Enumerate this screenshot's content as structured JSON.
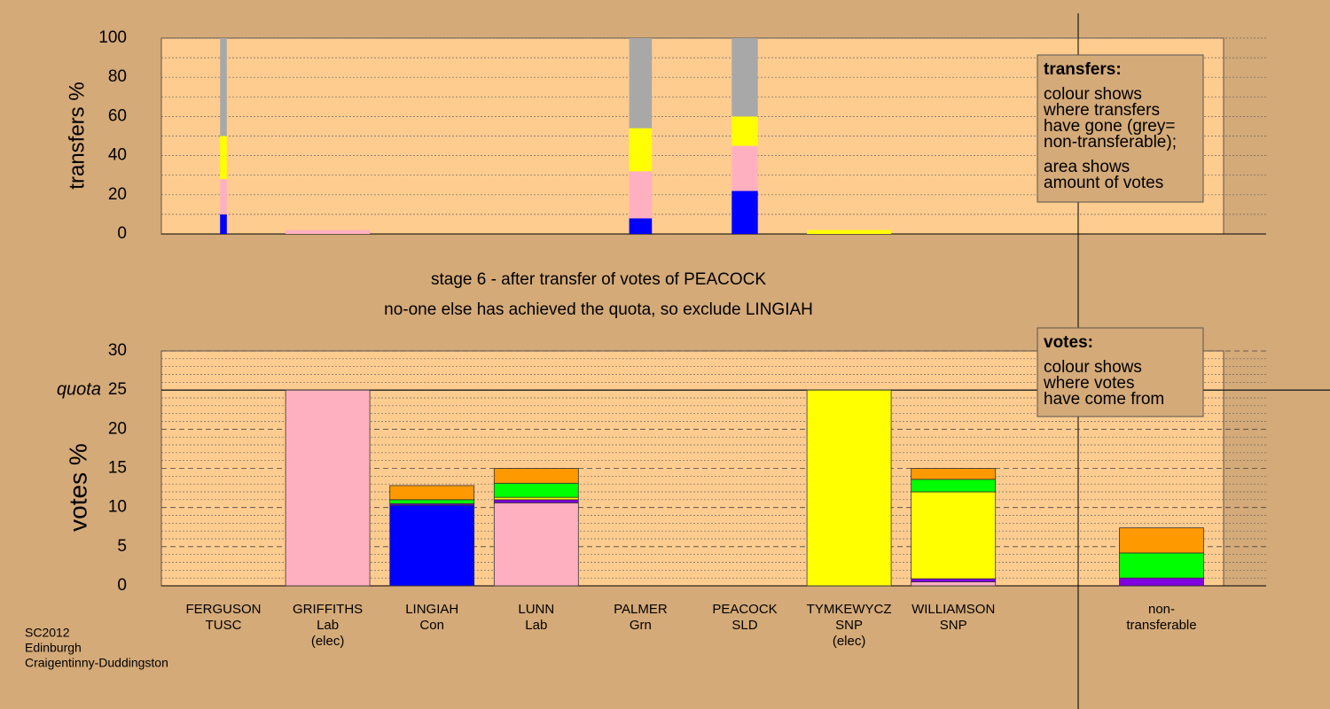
{
  "chart_data": [
    {
      "type": "bar",
      "stacked": true,
      "ylabel": "transfers %",
      "ylim": [
        0,
        100
      ],
      "yticks": [
        0,
        20,
        40,
        60,
        80,
        100
      ],
      "ygrid": [
        0,
        10,
        20,
        30,
        40,
        50,
        60,
        70,
        80,
        90,
        100
      ],
      "column_widths": [
        0.08,
        1,
        null,
        null,
        0.27,
        0.31,
        1,
        null,
        null
      ],
      "series": [
        {
          "color": "#0000ff",
          "values": [
            10,
            null,
            null,
            null,
            8,
            22,
            null,
            null,
            null
          ]
        },
        {
          "color": "#ffb0c0",
          "values": [
            18,
            2,
            null,
            null,
            24,
            23,
            null,
            null,
            null
          ]
        },
        {
          "color": "#ffff00",
          "values": [
            22,
            null,
            null,
            null,
            22,
            15,
            2,
            null,
            null
          ]
        },
        {
          "color": "#a8a8a8",
          "values": [
            50,
            null,
            null,
            null,
            46,
            40,
            null,
            null,
            null
          ]
        }
      ],
      "legend_box": {
        "title": "transfers:",
        "lines": [
          "colour shows",
          "where transfers",
          "have gone (grey=",
          "non-transferable);",
          "area shows",
          "amount of votes"
        ]
      }
    },
    {
      "type": "bar",
      "stacked": true,
      "ylabel": "votes %",
      "ylim": [
        0,
        30
      ],
      "yticks": [
        0,
        5,
        10,
        15,
        20,
        25,
        30
      ],
      "ygrid": [
        1,
        2,
        3,
        4,
        6,
        7,
        8,
        9,
        11,
        12,
        13,
        14,
        16,
        17,
        18,
        19,
        21,
        22,
        23,
        24,
        26,
        27,
        28,
        29
      ],
      "quota": {
        "value": 25,
        "label": "quota"
      },
      "categories": [
        [
          "FERGUSON",
          "TUSC"
        ],
        [
          "GRIFFITHS",
          "Lab",
          "(elec)"
        ],
        [
          "LINGIAH",
          "Con"
        ],
        [
          "LUNN",
          "Lab"
        ],
        [
          "PALMER",
          "Grn"
        ],
        [
          "PEACOCK",
          "SLD"
        ],
        [
          "TYMKEWYCZ",
          "SNP",
          "(elec)"
        ],
        [
          "WILLIAMSON",
          "SNP"
        ],
        [
          "non-",
          "transferable"
        ]
      ],
      "series": [
        {
          "color": "#0000ff",
          "values": [
            0,
            0,
            10.3,
            0,
            0,
            0,
            0,
            0,
            0
          ]
        },
        {
          "color": "#ffb0c0",
          "values": [
            0,
            25,
            0,
            10.6,
            0,
            0,
            0,
            0.5,
            0
          ]
        },
        {
          "color": "#8000e0",
          "values": [
            0,
            0,
            0.2,
            0.4,
            0,
            0,
            0,
            0.4,
            1
          ]
        },
        {
          "color": "#ffff00",
          "values": [
            0,
            0,
            0,
            0.3,
            0,
            0,
            25,
            11.1,
            0
          ]
        },
        {
          "color": "#00ff00",
          "values": [
            0,
            0,
            0.5,
            1.8,
            0,
            0,
            0,
            1.6,
            3.2
          ]
        },
        {
          "color": "#ff9900",
          "values": [
            0,
            0,
            1.8,
            1.9,
            0,
            0,
            0,
            1.4,
            3.2
          ]
        }
      ],
      "legend_box": {
        "title": "votes:",
        "lines": [
          "colour shows",
          "where votes",
          "have come from"
        ]
      }
    }
  ],
  "captions": [
    "stage 6 - after transfer of votes of PEACOCK",
    "no-one else has achieved the quota, so exclude LINGIAH"
  ],
  "footer": [
    "SC2012",
    "Edinburgh",
    "Craigentinny-Duddingston"
  ]
}
